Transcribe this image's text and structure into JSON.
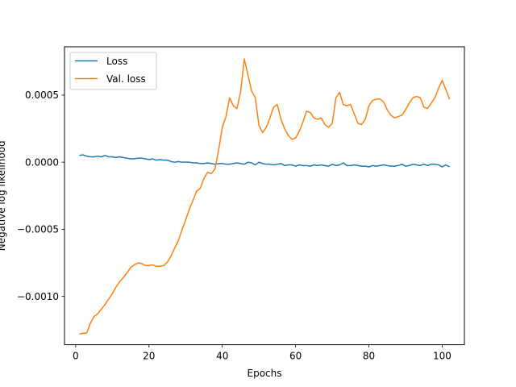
{
  "chart_data": {
    "type": "line",
    "title": "",
    "xlabel": "Epochs",
    "ylabel": "Negative log likelihood",
    "xlim": [
      -3.05,
      106.05
    ],
    "ylim": [
      -0.00136,
      0.00086
    ],
    "xticks": [
      0,
      20,
      40,
      60,
      80,
      100
    ],
    "xtick_labels": [
      "0",
      "20",
      "40",
      "60",
      "80",
      "100"
    ],
    "yticks": [
      -0.001,
      -0.0005,
      0.0,
      0.0005
    ],
    "ytick_labels": [
      "−0.0010",
      "−0.0005",
      "0.0000",
      "0.0005"
    ],
    "grid": false,
    "legend_position": "upper-left",
    "series": [
      {
        "name": "Loss",
        "color": "#1f77b4",
        "x": [
          1,
          2,
          3,
          4,
          5,
          6,
          7,
          8,
          9,
          10,
          11,
          12,
          13,
          14,
          15,
          16,
          17,
          18,
          19,
          20,
          21,
          22,
          23,
          24,
          25,
          26,
          27,
          28,
          29,
          30,
          31,
          32,
          33,
          34,
          35,
          36,
          37,
          38,
          39,
          40,
          41,
          42,
          43,
          44,
          45,
          46,
          47,
          48,
          49,
          50,
          51,
          52,
          53,
          54,
          55,
          56,
          57,
          58,
          59,
          60,
          61,
          62,
          63,
          64,
          65,
          66,
          67,
          68,
          69,
          70,
          71,
          72,
          73,
          74,
          75,
          76,
          77,
          78,
          79,
          80,
          81,
          82,
          83,
          84,
          85,
          86,
          87,
          88,
          89,
          90,
          91,
          92,
          93,
          94,
          95,
          96,
          97,
          98,
          99,
          100,
          101,
          102
        ],
        "values": [
          5e-05,
          5.5e-05,
          4.5e-05,
          4e-05,
          4e-05,
          4.5e-05,
          4e-05,
          5e-05,
          4e-05,
          4e-05,
          3.5e-05,
          4e-05,
          3.5e-05,
          3e-05,
          2.5e-05,
          2.5e-05,
          3e-05,
          3e-05,
          2.5e-05,
          2e-05,
          2.5e-05,
          1.5e-05,
          2e-05,
          1.5e-05,
          1.5e-05,
          5e-06,
          0.0,
          5e-06,
          0.0,
          0.0,
          0.0,
          -5e-06,
          -5e-06,
          -1e-05,
          -1e-05,
          -5e-06,
          -1e-05,
          -1.5e-05,
          -1e-05,
          -1e-05,
          -1.5e-05,
          -1.5e-05,
          -1e-05,
          -5e-06,
          -1e-05,
          -1.5e-05,
          0.0,
          -5e-06,
          -2e-05,
          0.0,
          -1e-05,
          -1.5e-05,
          -1.5e-05,
          -2e-05,
          -1.5e-05,
          -1e-05,
          -2.5e-05,
          -2e-05,
          -2e-05,
          -3e-05,
          -2e-05,
          -2.5e-05,
          -2.5e-05,
          -3e-05,
          -2e-05,
          -2.5e-05,
          -2e-05,
          -2.5e-05,
          -3e-05,
          -1.5e-05,
          -2.5e-05,
          -2e-05,
          -5e-06,
          -2.5e-05,
          -2.5e-05,
          -2e-05,
          -2.5e-05,
          -3e-05,
          -3e-05,
          -3.5e-05,
          -2.5e-05,
          -3e-05,
          -2.5e-05,
          -2e-05,
          -2.5e-05,
          -3e-05,
          -3e-05,
          -2.5e-05,
          -1.5e-05,
          -3e-05,
          -2.5e-05,
          -1.5e-05,
          -2e-05,
          -2.5e-05,
          -1.5e-05,
          -2.5e-05,
          -1.5e-05,
          -1.5e-05,
          -2e-05,
          -3.5e-05,
          -2e-05,
          -3.5e-05
        ]
      },
      {
        "name": "Val. loss",
        "color": "#ff7f0e",
        "x": [
          1,
          2,
          3,
          4,
          5,
          6,
          7,
          8,
          9,
          10,
          11,
          12,
          13,
          14,
          15,
          16,
          17,
          18,
          19,
          20,
          21,
          22,
          23,
          24,
          25,
          26,
          27,
          28,
          29,
          30,
          31,
          32,
          33,
          34,
          35,
          36,
          37,
          38,
          39,
          40,
          41,
          42,
          43,
          44,
          45,
          46,
          47,
          48,
          49,
          50,
          51,
          52,
          53,
          54,
          55,
          56,
          57,
          58,
          59,
          60,
          61,
          62,
          63,
          64,
          65,
          66,
          67,
          68,
          69,
          70,
          71,
          72,
          73,
          74,
          75,
          76,
          77,
          78,
          79,
          80,
          81,
          82,
          83,
          84,
          85,
          86,
          87,
          88,
          89,
          90,
          91,
          92,
          93,
          94,
          95,
          96,
          97,
          98,
          99,
          100,
          101,
          102
        ],
        "values": [
          -0.00128,
          -0.001275,
          -0.001272,
          -0.0012,
          -0.00115,
          -0.00113,
          -0.001095,
          -0.00106,
          -0.00102,
          -0.00098,
          -0.00093,
          -0.00089,
          -0.00086,
          -0.000825,
          -0.000785,
          -0.000765,
          -0.00075,
          -0.000755,
          -0.00077,
          -0.00077,
          -0.000765,
          -0.000775,
          -0.000775,
          -0.00077,
          -0.000745,
          -0.0007,
          -0.00064,
          -0.000585,
          -0.000505,
          -0.00043,
          -0.00035,
          -0.000285,
          -0.000215,
          -0.000195,
          -0.00012,
          -7.5e-05,
          -8.5e-05,
          -5e-05,
          9e-05,
          0.00026,
          0.00034,
          0.00048,
          0.00042,
          0.0004,
          0.000525,
          0.00077,
          0.00065,
          0.00053,
          0.00048,
          0.000275,
          0.00022,
          0.00026,
          0.00033,
          0.00041,
          0.00043,
          0.00032,
          0.00025,
          0.0002,
          0.00017,
          0.00018,
          0.00023,
          0.0003,
          0.00038,
          0.00037,
          0.00033,
          0.00032,
          0.00033,
          0.00028,
          0.00026,
          0.00029,
          0.00048,
          0.00052,
          0.00043,
          0.00042,
          0.00043,
          0.00036,
          0.00029,
          0.00028,
          0.00032,
          0.00042,
          0.00046,
          0.00047,
          0.00047,
          0.00045,
          0.00039,
          0.00035,
          0.00033,
          0.00034,
          0.00035,
          0.00039,
          0.00044,
          0.00048,
          0.00049,
          0.00048,
          0.00041,
          0.0004,
          0.00044,
          0.00048,
          0.00055,
          0.00061,
          0.00054,
          0.00047
        ]
      }
    ]
  }
}
